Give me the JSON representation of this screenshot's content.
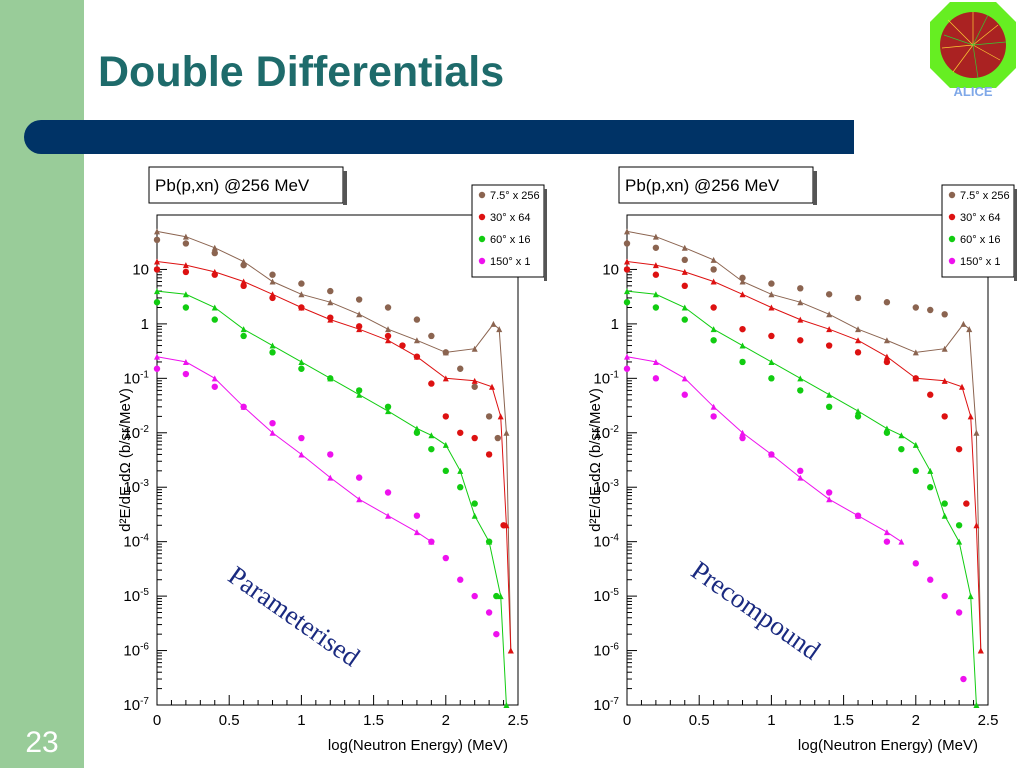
{
  "slide": {
    "title": "Double Differentials",
    "number": "23",
    "logo_text": "ALICE",
    "colors": {
      "sidebar": "#99cc99",
      "title": "#1e6b6b",
      "bar": "#003366"
    }
  },
  "chart_data": [
    {
      "type": "scatter",
      "title": "Pb(p,xn) @256 MeV",
      "xlabel": "log(Neutron Energy) (MeV)",
      "ylabel": "d²E/dE dΩ (b/sr/MeV)",
      "xlim": [
        0,
        2.5
      ],
      "ylim": [
        1e-07,
        100
      ],
      "yscale": "log",
      "x_ticks": [
        "0",
        "0.5",
        "1",
        "1.5",
        "2",
        "2.5"
      ],
      "y_ticks": [
        {
          "base": "10",
          "exp": "-7"
        },
        {
          "base": "10",
          "exp": "-6"
        },
        {
          "base": "10",
          "exp": "-5"
        },
        {
          "base": "10",
          "exp": "-4"
        },
        {
          "base": "10",
          "exp": "-3"
        },
        {
          "base": "10",
          "exp": "-2"
        },
        {
          "base": "10",
          "exp": "-1"
        },
        {
          "base": "1",
          "exp": ""
        },
        {
          "base": "10",
          "exp": ""
        }
      ],
      "legend_position": "top-right",
      "annotation": "Parameterised",
      "series": [
        {
          "name": "7.5° x 256",
          "color": "#8b6450",
          "points": [
            [
              0,
              35
            ],
            [
              0.2,
              30
            ],
            [
              0.4,
              20
            ],
            [
              0.6,
              12
            ],
            [
              0.8,
              8
            ],
            [
              1.0,
              5.5
            ],
            [
              1.2,
              4
            ],
            [
              1.4,
              2.8
            ],
            [
              1.6,
              2
            ],
            [
              1.8,
              1.2
            ],
            [
              1.9,
              0.6
            ],
            [
              2.0,
              0.3
            ],
            [
              2.1,
              0.15
            ],
            [
              2.2,
              0.07
            ],
            [
              2.3,
              0.02
            ],
            [
              2.36,
              0.008
            ]
          ],
          "model": [
            [
              0,
              50
            ],
            [
              0.2,
              40
            ],
            [
              0.4,
              25
            ],
            [
              0.6,
              14
            ],
            [
              0.8,
              6
            ],
            [
              1.0,
              3.5
            ],
            [
              1.2,
              2.5
            ],
            [
              1.4,
              1.5
            ],
            [
              1.6,
              0.8
            ],
            [
              1.8,
              0.5
            ],
            [
              2.0,
              0.3
            ],
            [
              2.2,
              0.35
            ],
            [
              2.33,
              1.0
            ],
            [
              2.37,
              0.8
            ],
            [
              2.42,
              0.01
            ],
            [
              2.45,
              1e-06
            ]
          ]
        },
        {
          "name": "30° x 64",
          "color": "#dd1111",
          "points": [
            [
              0,
              10
            ],
            [
              0.2,
              9
            ],
            [
              0.4,
              8
            ],
            [
              0.6,
              5
            ],
            [
              0.8,
              3
            ],
            [
              1.0,
              2
            ],
            [
              1.2,
              1.3
            ],
            [
              1.4,
              0.9
            ],
            [
              1.6,
              0.6
            ],
            [
              1.7,
              0.4
            ],
            [
              1.8,
              0.25
            ],
            [
              1.9,
              0.08
            ],
            [
              2.0,
              0.02
            ],
            [
              2.1,
              0.01
            ],
            [
              2.2,
              0.008
            ],
            [
              2.3,
              0.004
            ],
            [
              2.4,
              0.0002
            ]
          ],
          "model": [
            [
              0,
              14
            ],
            [
              0.2,
              12
            ],
            [
              0.4,
              9
            ],
            [
              0.6,
              6
            ],
            [
              0.8,
              3.5
            ],
            [
              1.0,
              2
            ],
            [
              1.2,
              1.2
            ],
            [
              1.4,
              0.8
            ],
            [
              1.6,
              0.5
            ],
            [
              1.8,
              0.25
            ],
            [
              2.0,
              0.1
            ],
            [
              2.2,
              0.09
            ],
            [
              2.32,
              0.07
            ],
            [
              2.38,
              0.02
            ],
            [
              2.42,
              0.0002
            ],
            [
              2.45,
              1e-06
            ]
          ]
        },
        {
          "name": "60° x 16",
          "color": "#11cc11",
          "points": [
            [
              0,
              2.5
            ],
            [
              0.2,
              2
            ],
            [
              0.4,
              1.2
            ],
            [
              0.6,
              0.6
            ],
            [
              0.8,
              0.3
            ],
            [
              1.0,
              0.15
            ],
            [
              1.2,
              0.1
            ],
            [
              1.4,
              0.06
            ],
            [
              1.6,
              0.03
            ],
            [
              1.8,
              0.01
            ],
            [
              1.9,
              0.005
            ],
            [
              2.0,
              0.002
            ],
            [
              2.1,
              0.001
            ],
            [
              2.2,
              0.0005
            ],
            [
              2.3,
              0.0001
            ],
            [
              2.35,
              1e-05
            ]
          ],
          "model": [
            [
              0,
              4
            ],
            [
              0.2,
              3.5
            ],
            [
              0.4,
              2
            ],
            [
              0.6,
              0.8
            ],
            [
              0.8,
              0.4
            ],
            [
              1.0,
              0.2
            ],
            [
              1.2,
              0.1
            ],
            [
              1.4,
              0.05
            ],
            [
              1.6,
              0.025
            ],
            [
              1.8,
              0.012
            ],
            [
              1.9,
              0.009
            ],
            [
              2.0,
              0.006
            ],
            [
              2.1,
              0.002
            ],
            [
              2.2,
              0.0003
            ],
            [
              2.3,
              0.0001
            ],
            [
              2.38,
              1e-05
            ],
            [
              2.42,
              1e-07
            ]
          ]
        },
        {
          "name": "150° x 1",
          "color": "#ee11ee",
          "points": [
            [
              0,
              0.15
            ],
            [
              0.2,
              0.12
            ],
            [
              0.4,
              0.07
            ],
            [
              0.6,
              0.03
            ],
            [
              0.8,
              0.015
            ],
            [
              1.0,
              0.008
            ],
            [
              1.2,
              0.004
            ],
            [
              1.4,
              0.0015
            ],
            [
              1.6,
              0.0008
            ],
            [
              1.8,
              0.0003
            ],
            [
              1.9,
              0.0001
            ],
            [
              2.0,
              5e-05
            ],
            [
              2.1,
              2e-05
            ],
            [
              2.2,
              1e-05
            ],
            [
              2.3,
              5e-06
            ],
            [
              2.35,
              2e-06
            ]
          ],
          "model": [
            [
              0,
              0.25
            ],
            [
              0.2,
              0.2
            ],
            [
              0.4,
              0.1
            ],
            [
              0.6,
              0.03
            ],
            [
              0.8,
              0.01
            ],
            [
              1.0,
              0.004
            ],
            [
              1.2,
              0.0015
            ],
            [
              1.4,
              0.0006
            ],
            [
              1.6,
              0.0003
            ],
            [
              1.8,
              0.00015
            ],
            [
              1.9,
              0.0001
            ]
          ]
        }
      ]
    },
    {
      "type": "scatter",
      "title": "Pb(p,xn) @256 MeV",
      "xlabel": "log(Neutron Energy) (MeV)",
      "ylabel": "d²E/dE dΩ (b/sr/MeV)",
      "xlim": [
        0,
        2.5
      ],
      "ylim": [
        1e-07,
        100
      ],
      "yscale": "log",
      "x_ticks": [
        "0",
        "0.5",
        "1",
        "1.5",
        "2",
        "2.5"
      ],
      "y_ticks": [
        {
          "base": "10",
          "exp": "-7"
        },
        {
          "base": "10",
          "exp": "-6"
        },
        {
          "base": "10",
          "exp": "-5"
        },
        {
          "base": "10",
          "exp": "-4"
        },
        {
          "base": "10",
          "exp": "-3"
        },
        {
          "base": "10",
          "exp": "-2"
        },
        {
          "base": "10",
          "exp": "-1"
        },
        {
          "base": "1",
          "exp": ""
        },
        {
          "base": "10",
          "exp": ""
        }
      ],
      "legend_position": "top-right",
      "annotation": "Precompound",
      "series": [
        {
          "name": "7.5° x 256",
          "color": "#8b6450",
          "points": [
            [
              0,
              30
            ],
            [
              0.2,
              25
            ],
            [
              0.4,
              15
            ],
            [
              0.6,
              10
            ],
            [
              0.8,
              7
            ],
            [
              1.0,
              5.5
            ],
            [
              1.2,
              4.5
            ],
            [
              1.4,
              3.5
            ],
            [
              1.6,
              3
            ],
            [
              1.8,
              2.5
            ],
            [
              2.0,
              2
            ],
            [
              2.1,
              1.8
            ],
            [
              2.2,
              1.5
            ]
          ],
          "model": [
            [
              0,
              50
            ],
            [
              0.2,
              40
            ],
            [
              0.4,
              25
            ],
            [
              0.6,
              15
            ],
            [
              0.8,
              6
            ],
            [
              1.0,
              3.5
            ],
            [
              1.2,
              2.5
            ],
            [
              1.4,
              1.5
            ],
            [
              1.6,
              0.8
            ],
            [
              1.8,
              0.5
            ],
            [
              2.0,
              0.3
            ],
            [
              2.2,
              0.35
            ],
            [
              2.33,
              1.0
            ],
            [
              2.37,
              0.8
            ],
            [
              2.42,
              0.01
            ],
            [
              2.45,
              1e-06
            ]
          ]
        },
        {
          "name": "30° x 64",
          "color": "#dd1111",
          "points": [
            [
              0,
              10
            ],
            [
              0.2,
              8
            ],
            [
              0.4,
              5
            ],
            [
              0.6,
              2
            ],
            [
              0.8,
              0.8
            ],
            [
              1.0,
              0.6
            ],
            [
              1.2,
              0.5
            ],
            [
              1.4,
              0.4
            ],
            [
              1.6,
              0.3
            ],
            [
              1.8,
              0.2
            ],
            [
              2.0,
              0.1
            ],
            [
              2.1,
              0.05
            ],
            [
              2.2,
              0.02
            ],
            [
              2.3,
              0.005
            ],
            [
              2.35,
              0.0005
            ]
          ],
          "model": [
            [
              0,
              14
            ],
            [
              0.2,
              12
            ],
            [
              0.4,
              9
            ],
            [
              0.6,
              6
            ],
            [
              0.8,
              3.5
            ],
            [
              1.0,
              2
            ],
            [
              1.2,
              1.2
            ],
            [
              1.4,
              0.8
            ],
            [
              1.6,
              0.5
            ],
            [
              1.8,
              0.25
            ],
            [
              2.0,
              0.1
            ],
            [
              2.2,
              0.09
            ],
            [
              2.32,
              0.07
            ],
            [
              2.38,
              0.02
            ],
            [
              2.42,
              0.0002
            ],
            [
              2.45,
              1e-06
            ]
          ]
        },
        {
          "name": "60° x 16",
          "color": "#11cc11",
          "points": [
            [
              0,
              2.5
            ],
            [
              0.2,
              2
            ],
            [
              0.4,
              1.2
            ],
            [
              0.6,
              0.5
            ],
            [
              0.8,
              0.2
            ],
            [
              1.0,
              0.1
            ],
            [
              1.2,
              0.06
            ],
            [
              1.4,
              0.03
            ],
            [
              1.6,
              0.02
            ],
            [
              1.8,
              0.01
            ],
            [
              1.9,
              0.005
            ],
            [
              2.0,
              0.002
            ],
            [
              2.1,
              0.001
            ],
            [
              2.2,
              0.0005
            ],
            [
              2.3,
              0.0002
            ]
          ],
          "model": [
            [
              0,
              4
            ],
            [
              0.2,
              3.5
            ],
            [
              0.4,
              2
            ],
            [
              0.6,
              0.8
            ],
            [
              0.8,
              0.4
            ],
            [
              1.0,
              0.2
            ],
            [
              1.2,
              0.1
            ],
            [
              1.4,
              0.05
            ],
            [
              1.6,
              0.025
            ],
            [
              1.8,
              0.012
            ],
            [
              1.9,
              0.009
            ],
            [
              2.0,
              0.006
            ],
            [
              2.1,
              0.002
            ],
            [
              2.2,
              0.0003
            ],
            [
              2.3,
              0.0001
            ],
            [
              2.38,
              1e-05
            ],
            [
              2.42,
              1e-07
            ]
          ]
        },
        {
          "name": "150° x 1",
          "color": "#ee11ee",
          "points": [
            [
              0,
              0.15
            ],
            [
              0.2,
              0.1
            ],
            [
              0.4,
              0.05
            ],
            [
              0.6,
              0.02
            ],
            [
              0.8,
              0.008
            ],
            [
              1.0,
              0.004
            ],
            [
              1.2,
              0.002
            ],
            [
              1.4,
              0.0008
            ],
            [
              1.6,
              0.0003
            ],
            [
              1.8,
              0.0001
            ],
            [
              2.0,
              4e-05
            ],
            [
              2.1,
              2e-05
            ],
            [
              2.2,
              1e-05
            ],
            [
              2.3,
              5e-06
            ],
            [
              2.33,
              3e-07
            ]
          ],
          "model": [
            [
              0,
              0.25
            ],
            [
              0.2,
              0.2
            ],
            [
              0.4,
              0.1
            ],
            [
              0.6,
              0.03
            ],
            [
              0.8,
              0.01
            ],
            [
              1.0,
              0.004
            ],
            [
              1.2,
              0.0015
            ],
            [
              1.4,
              0.0006
            ],
            [
              1.6,
              0.0003
            ],
            [
              1.8,
              0.00015
            ],
            [
              1.9,
              0.0001
            ]
          ]
        }
      ]
    }
  ]
}
